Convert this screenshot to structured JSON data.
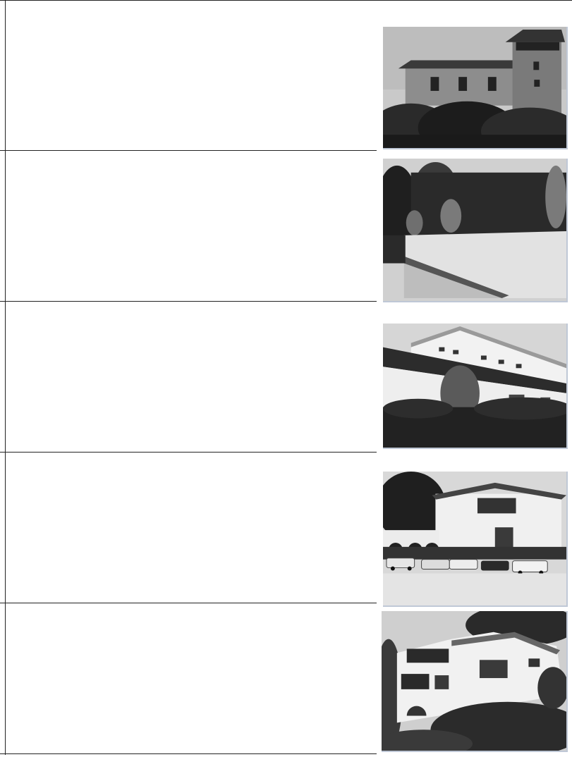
{
  "page": {
    "photos": [
      {
        "subject": "stone-manor-with-tower"
      },
      {
        "subject": "garden-wall-with-urns"
      },
      {
        "subject": "modern-white-building"
      },
      {
        "subject": "white-villa-with-parked-cars"
      },
      {
        "subject": "terraced-white-house"
      }
    ]
  }
}
